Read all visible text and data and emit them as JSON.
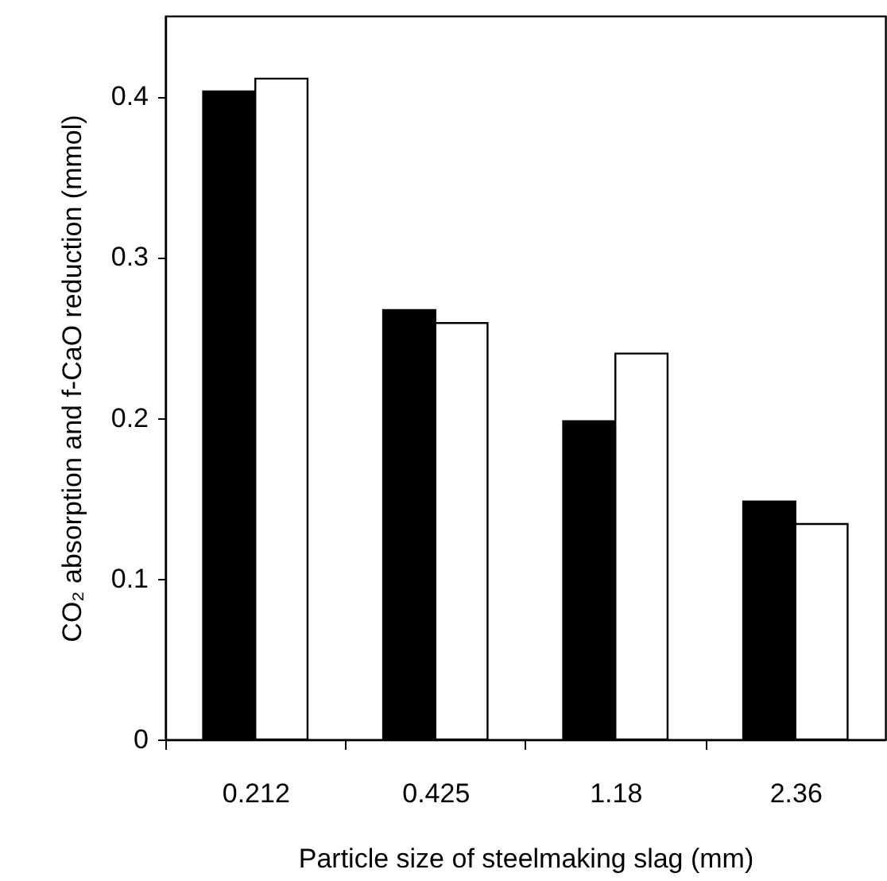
{
  "chart_data": {
    "type": "bar",
    "xlabel": "Particle size of steelmaking slag (mm)",
    "ylabel": "CO₂ absorption and f-CaO reduction (mmol)",
    "categories": [
      "0.212",
      "0.425",
      "1.18",
      "2.36"
    ],
    "series": [
      {
        "color": "#000000",
        "values": [
          0.403,
          0.267,
          0.198,
          0.148
        ]
      },
      {
        "color": "#ffffff",
        "values": [
          0.411,
          0.259,
          0.24,
          0.134
        ]
      }
    ],
    "ylim": [
      0,
      0.45
    ],
    "yticks": [
      0,
      0.1,
      0.2,
      0.3,
      0.4
    ],
    "grid": false
  }
}
